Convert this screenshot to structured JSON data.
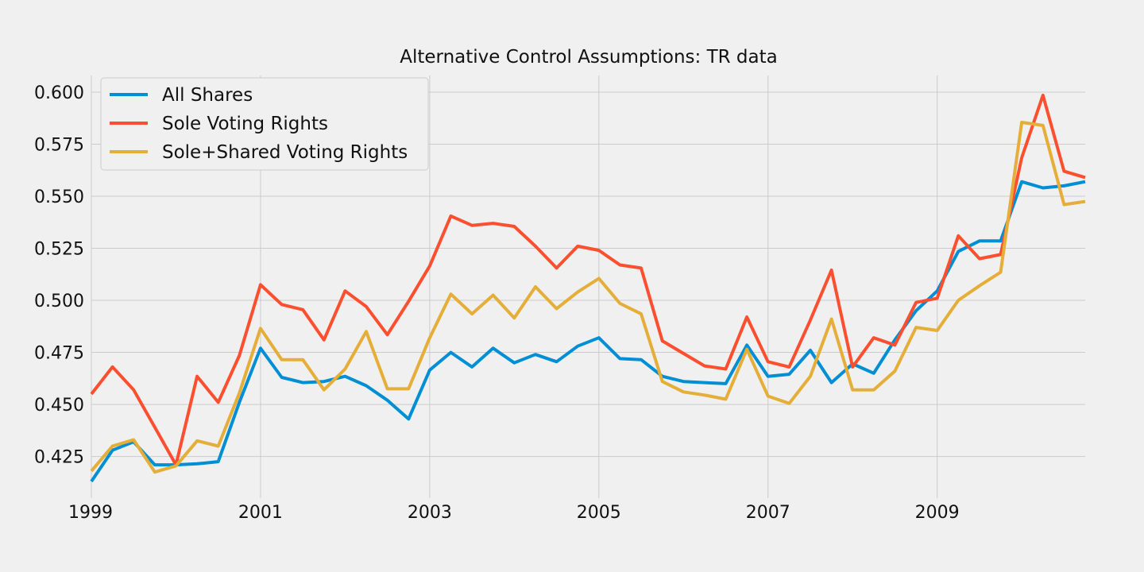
{
  "chart_data": {
    "type": "line",
    "title": "Alternative Control Assumptions: TR data",
    "xlabel": "",
    "ylabel": "",
    "xlim": [
      1999.0,
      2010.75
    ],
    "ylim": [
      0.405,
      0.608
    ],
    "x_ticks": [
      1999,
      2001,
      2003,
      2005,
      2007,
      2009
    ],
    "x_tick_labels": [
      "1999",
      "2001",
      "2003",
      "2005",
      "2007",
      "2009"
    ],
    "y_ticks": [
      0.425,
      0.45,
      0.475,
      0.5,
      0.525,
      0.55,
      0.575,
      0.6
    ],
    "y_tick_labels": [
      "0.425",
      "0.450",
      "0.475",
      "0.500",
      "0.525",
      "0.550",
      "0.575",
      "0.600"
    ],
    "grid": true,
    "legend_position": "top-left",
    "x": [
      1999.0,
      1999.25,
      1999.5,
      1999.75,
      2000.0,
      2000.25,
      2000.5,
      2000.75,
      2001.0,
      2001.25,
      2001.5,
      2001.75,
      2002.0,
      2002.25,
      2002.5,
      2002.75,
      2003.0,
      2003.25,
      2003.5,
      2003.75,
      2004.0,
      2004.25,
      2004.5,
      2004.75,
      2005.0,
      2005.25,
      2005.5,
      2005.75,
      2006.0,
      2006.25,
      2006.5,
      2006.75,
      2007.0,
      2007.25,
      2007.5,
      2007.75,
      2008.0,
      2008.25,
      2008.5,
      2008.75,
      2009.0,
      2009.25,
      2009.5,
      2009.75,
      2010.0,
      2010.25,
      2010.5,
      2010.75
    ],
    "series": [
      {
        "name": "All Shares",
        "color": "#008fd5",
        "values": [
          0.413,
          0.428,
          0.432,
          0.421,
          0.421,
          0.4215,
          0.4225,
          0.451,
          0.477,
          0.463,
          0.4605,
          0.461,
          0.4635,
          0.459,
          0.452,
          0.443,
          0.4665,
          0.475,
          0.468,
          0.477,
          0.47,
          0.474,
          0.4705,
          0.478,
          0.482,
          0.472,
          0.4715,
          0.4635,
          0.461,
          0.4605,
          0.46,
          0.4785,
          0.4635,
          0.4645,
          0.476,
          0.4605,
          0.4695,
          0.465,
          0.481,
          0.495,
          0.5045,
          0.5235,
          0.5285,
          0.5285,
          0.557,
          0.554,
          0.555,
          0.557
        ]
      },
      {
        "name": "Sole Voting Rights",
        "color": "#fc4f30",
        "values": [
          0.455,
          0.468,
          0.457,
          0.439,
          0.421,
          0.4635,
          0.451,
          0.4735,
          0.5075,
          0.498,
          0.4955,
          0.481,
          0.5045,
          0.497,
          0.4835,
          0.4995,
          0.5165,
          0.5405,
          0.536,
          0.537,
          0.5355,
          0.526,
          0.5155,
          0.526,
          0.524,
          0.517,
          0.5155,
          0.4805,
          0.4745,
          0.4685,
          0.467,
          0.492,
          0.4705,
          0.468,
          0.4905,
          0.5145,
          0.468,
          0.482,
          0.4785,
          0.499,
          0.501,
          0.531,
          0.52,
          0.522,
          0.5685,
          0.5985,
          0.562,
          0.559
        ]
      },
      {
        "name": "Sole+Shared Voting Rights",
        "color": "#e5ae38",
        "values": [
          0.418,
          0.43,
          0.433,
          0.4175,
          0.4205,
          0.4325,
          0.43,
          0.4555,
          0.4865,
          0.4715,
          0.4715,
          0.457,
          0.467,
          0.485,
          0.4575,
          0.4575,
          0.482,
          0.503,
          0.4935,
          0.5025,
          0.4915,
          0.5065,
          0.496,
          0.504,
          0.5105,
          0.4985,
          0.4935,
          0.461,
          0.456,
          0.4545,
          0.4525,
          0.4765,
          0.454,
          0.4505,
          0.4635,
          0.491,
          0.457,
          0.457,
          0.466,
          0.487,
          0.4855,
          0.5,
          0.507,
          0.5135,
          0.5855,
          0.584,
          0.546,
          0.5475
        ]
      }
    ]
  }
}
